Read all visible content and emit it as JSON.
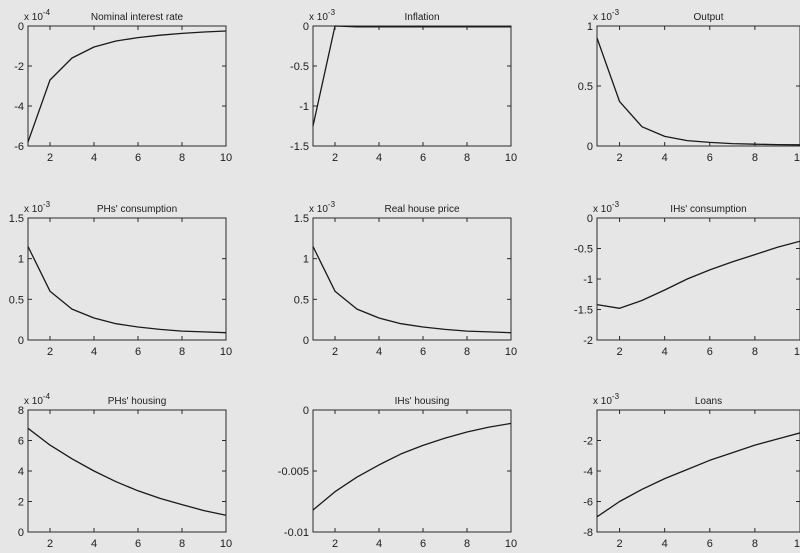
{
  "chart_data": [
    {
      "type": "line",
      "title": "Nominal interest rate",
      "y_multiplier": {
        "base": "x 10",
        "exponent": "-4"
      },
      "x": [
        1,
        2,
        3,
        4,
        5,
        6,
        7,
        8,
        9,
        10
      ],
      "series": [
        {
          "values": [
            -5.8,
            -2.7,
            -1.6,
            -1.05,
            -0.75,
            -0.58,
            -0.46,
            -0.37,
            -0.3,
            -0.25
          ]
        }
      ],
      "xlim": [
        1,
        10
      ],
      "ylim": [
        -6,
        0
      ],
      "xticks": [
        2,
        4,
        6,
        8,
        10
      ],
      "yticks": [
        0,
        -2,
        -4,
        -6
      ],
      "ytick_labels": [
        "0",
        "-2",
        "-4",
        "-6"
      ]
    },
    {
      "type": "line",
      "title": "Inflation",
      "y_multiplier": {
        "base": "x 10",
        "exponent": "-3"
      },
      "x": [
        1,
        2,
        3,
        4,
        5,
        6,
        7,
        8,
        9,
        10
      ],
      "series": [
        {
          "values": [
            -1.25,
            0.0,
            -0.01,
            -0.01,
            -0.01,
            -0.01,
            -0.01,
            -0.01,
            -0.01,
            -0.01
          ]
        }
      ],
      "xlim": [
        1,
        10
      ],
      "ylim": [
        -1.5,
        0
      ],
      "xticks": [
        2,
        4,
        6,
        8,
        10
      ],
      "yticks": [
        0,
        -0.5,
        -1,
        -1.5
      ],
      "ytick_labels": [
        "0",
        "-0.5",
        "-1",
        "-1.5"
      ]
    },
    {
      "type": "line",
      "title": "Output",
      "y_multiplier": {
        "base": "x 10",
        "exponent": "-3"
      },
      "x": [
        1,
        2,
        3,
        4,
        5,
        6,
        7,
        8,
        9,
        10
      ],
      "series": [
        {
          "values": [
            0.9,
            0.37,
            0.16,
            0.08,
            0.045,
            0.03,
            0.02,
            0.015,
            0.012,
            0.01
          ]
        }
      ],
      "xlim": [
        1,
        10
      ],
      "ylim": [
        0,
        1
      ],
      "xticks": [
        2,
        4,
        6,
        8,
        10
      ],
      "yticks": [
        1,
        0.5,
        0
      ],
      "ytick_labels": [
        "1",
        "0.5",
        "0"
      ]
    },
    {
      "type": "line",
      "title": "PHs' consumption",
      "y_multiplier": {
        "base": "x 10",
        "exponent": "-3"
      },
      "x": [
        1,
        2,
        3,
        4,
        5,
        6,
        7,
        8,
        9,
        10
      ],
      "series": [
        {
          "values": [
            1.15,
            0.6,
            0.38,
            0.27,
            0.2,
            0.16,
            0.13,
            0.11,
            0.1,
            0.09
          ]
        }
      ],
      "xlim": [
        1,
        10
      ],
      "ylim": [
        0,
        1.5
      ],
      "xticks": [
        2,
        4,
        6,
        8,
        10
      ],
      "yticks": [
        1.5,
        1,
        0.5,
        0
      ],
      "ytick_labels": [
        "1.5",
        "1",
        "0.5",
        "0"
      ]
    },
    {
      "type": "line",
      "title": "Real house price",
      "y_multiplier": {
        "base": "x 10",
        "exponent": "-3"
      },
      "x": [
        1,
        2,
        3,
        4,
        5,
        6,
        7,
        8,
        9,
        10
      ],
      "series": [
        {
          "values": [
            1.15,
            0.6,
            0.38,
            0.27,
            0.2,
            0.16,
            0.13,
            0.11,
            0.1,
            0.09
          ]
        }
      ],
      "xlim": [
        1,
        10
      ],
      "ylim": [
        0,
        1.5
      ],
      "xticks": [
        2,
        4,
        6,
        8,
        10
      ],
      "yticks": [
        1.5,
        1,
        0.5,
        0
      ],
      "ytick_labels": [
        "1.5",
        "1",
        "0.5",
        "0"
      ]
    },
    {
      "type": "line",
      "title": "IHs' consumption",
      "y_multiplier": {
        "base": "x 10",
        "exponent": "-3"
      },
      "x": [
        1,
        2,
        3,
        4,
        5,
        6,
        7,
        8,
        9,
        10
      ],
      "series": [
        {
          "values": [
            -1.42,
            -1.48,
            -1.35,
            -1.18,
            -1.0,
            -0.85,
            -0.72,
            -0.6,
            -0.48,
            -0.38
          ]
        }
      ],
      "xlim": [
        1,
        10
      ],
      "ylim": [
        -2,
        0
      ],
      "xticks": [
        2,
        4,
        6,
        8,
        10
      ],
      "yticks": [
        0,
        -0.5,
        -1,
        -1.5,
        -2
      ],
      "ytick_labels": [
        "0",
        "-0.5",
        "-1",
        "-1.5",
        "-2"
      ]
    },
    {
      "type": "line",
      "title": "PHs' housing",
      "y_multiplier": {
        "base": "x 10",
        "exponent": "-4"
      },
      "x": [
        1,
        2,
        3,
        4,
        5,
        6,
        7,
        8,
        9,
        10
      ],
      "series": [
        {
          "values": [
            6.8,
            5.7,
            4.8,
            4.0,
            3.3,
            2.7,
            2.2,
            1.8,
            1.4,
            1.1
          ]
        }
      ],
      "xlim": [
        1,
        10
      ],
      "ylim": [
        0,
        8
      ],
      "xticks": [
        2,
        4,
        6,
        8,
        10
      ],
      "yticks": [
        8,
        6,
        4,
        2,
        0
      ],
      "ytick_labels": [
        "8",
        "6",
        "4",
        "2",
        "0"
      ]
    },
    {
      "type": "line",
      "title": "IHs' housing",
      "y_multiplier": null,
      "x": [
        1,
        2,
        3,
        4,
        5,
        6,
        7,
        8,
        9,
        10
      ],
      "series": [
        {
          "values": [
            -0.0082,
            -0.0067,
            -0.0055,
            -0.0045,
            -0.0036,
            -0.0029,
            -0.0023,
            -0.0018,
            -0.0014,
            -0.0011
          ]
        }
      ],
      "xlim": [
        1,
        10
      ],
      "ylim": [
        -0.01,
        0
      ],
      "xticks": [
        2,
        4,
        6,
        8,
        10
      ],
      "yticks": [
        0,
        -0.005,
        -0.01
      ],
      "ytick_labels": [
        "0",
        "-0.005",
        "-0.01"
      ]
    },
    {
      "type": "line",
      "title": "Loans",
      "y_multiplier": {
        "base": "x 10",
        "exponent": "-3"
      },
      "x": [
        1,
        2,
        3,
        4,
        5,
        6,
        7,
        8,
        9,
        10
      ],
      "series": [
        {
          "values": [
            -7.0,
            -6.0,
            -5.2,
            -4.5,
            -3.9,
            -3.3,
            -2.8,
            -2.3,
            -1.9,
            -1.5
          ]
        }
      ],
      "xlim": [
        1,
        10
      ],
      "ylim": [
        -8,
        0
      ],
      "xticks": [
        2,
        4,
        6,
        8,
        10
      ],
      "yticks": [
        -2,
        -4,
        -6,
        -8
      ],
      "ytick_labels": [
        "-2",
        "-4",
        "-6",
        "-8"
      ]
    }
  ],
  "colors": {
    "axes": "#2a2a2a",
    "line": "#1a1a1a",
    "background": "#e6e6e6"
  }
}
